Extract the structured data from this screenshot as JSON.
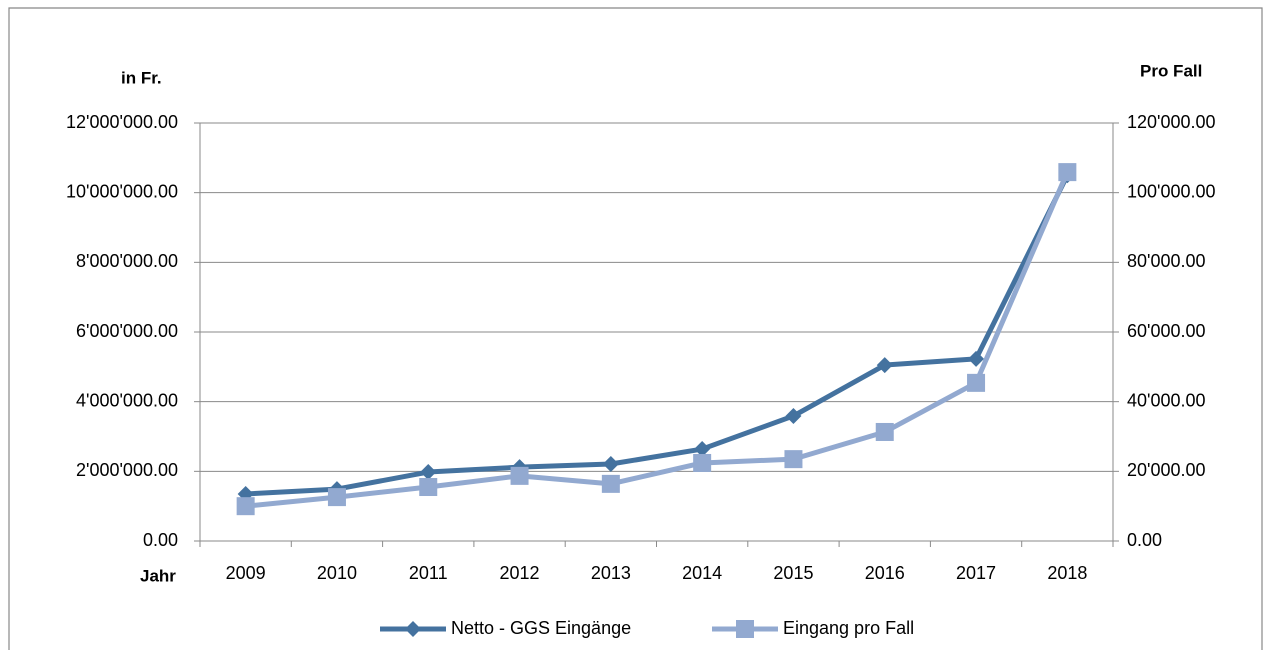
{
  "chart_data": {
    "type": "line",
    "y_label": "in Fr.",
    "y2_label": "Pro Fall",
    "x_label": "Jahr",
    "categories": [
      "2009",
      "2010",
      "2011",
      "2012",
      "2013",
      "2014",
      "2015",
      "2016",
      "2017",
      "2018"
    ],
    "series": [
      {
        "name": "Netto - GGS Eingänge",
        "color": "#44729f",
        "marker": "diamond",
        "axis": "y",
        "values": [
          1350000,
          1490000,
          1980000,
          2120000,
          2210000,
          2640000,
          3590000,
          5050000,
          5230000,
          10500000
        ]
      },
      {
        "name": "Eingang pro Fall",
        "color": "#92a9d0",
        "marker": "square",
        "axis": "y2",
        "values": [
          10000,
          12600,
          15500,
          18700,
          16400,
          22400,
          23500,
          31300,
          45400,
          105900
        ]
      }
    ],
    "ylim": [
      0,
      12000000
    ],
    "yticks": [
      {
        "value": 0,
        "label": "0.00"
      },
      {
        "value": 2000000,
        "label": "2'000'000.00"
      },
      {
        "value": 4000000,
        "label": "4'000'000.00"
      },
      {
        "value": 6000000,
        "label": "6'000'000.00"
      },
      {
        "value": 8000000,
        "label": "8'000'000.00"
      },
      {
        "value": 10000000,
        "label": "10'000'000.00"
      },
      {
        "value": 12000000,
        "label": "12'000'000.00"
      }
    ],
    "y2lim": [
      0,
      120000
    ],
    "y2ticks": [
      {
        "value": 0,
        "label": "0.00"
      },
      {
        "value": 20000,
        "label": "20'000.00"
      },
      {
        "value": 40000,
        "label": "40'000.00"
      },
      {
        "value": 60000,
        "label": "60'000.00"
      },
      {
        "value": 80000,
        "label": "80'000.00"
      },
      {
        "value": 100000,
        "label": "100'000.00"
      },
      {
        "value": 120000,
        "label": "120'000.00"
      }
    ],
    "grid": true,
    "legend": "bottom"
  }
}
